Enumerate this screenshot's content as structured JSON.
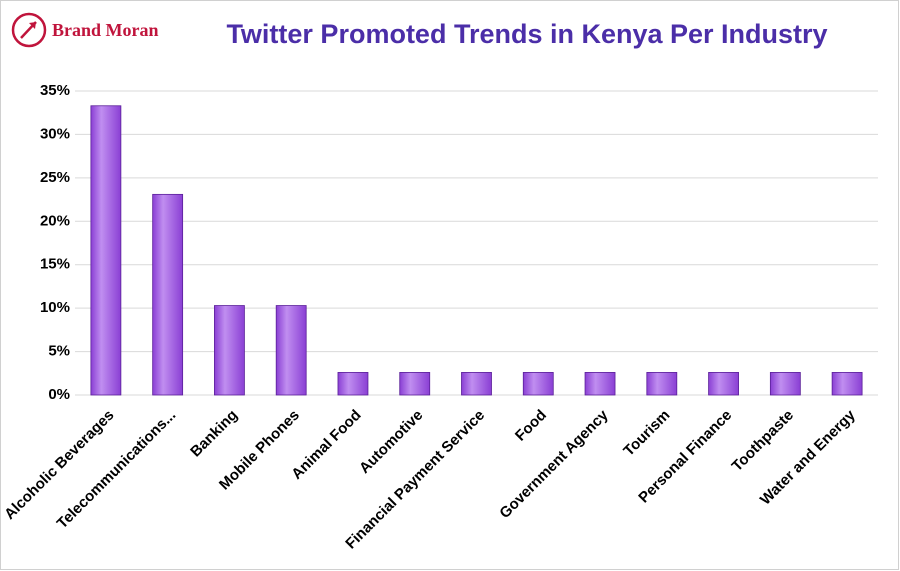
{
  "brand": "Brand Moran",
  "chart_data": {
    "type": "bar",
    "title": "Twitter Promoted Trends in Kenya Per Industry",
    "categories": [
      "Alcoholic Beverages",
      "Telecommunications...",
      "Banking",
      "Mobile Phones",
      "Animal Food",
      "Automotive",
      "Financial Payment Service",
      "Food",
      "Government Agency",
      "Tourism",
      "Personal Finance",
      "Toothpaste",
      "Water and Energy"
    ],
    "values": [
      33.3,
      23.1,
      10.3,
      10.3,
      2.6,
      2.6,
      2.6,
      2.6,
      2.6,
      2.6,
      2.6,
      2.6,
      2.6
    ],
    "color": "#8a3fd4",
    "ylim": [
      0,
      35
    ],
    "yticks": [
      {
        "value": 0,
        "label": "0%"
      },
      {
        "value": 5,
        "label": "5%"
      },
      {
        "value": 10,
        "label": "10%"
      },
      {
        "value": 15,
        "label": "15%"
      },
      {
        "value": 20,
        "label": "20%"
      },
      {
        "value": 25,
        "label": "25%"
      },
      {
        "value": 30,
        "label": "30%"
      },
      {
        "value": 35,
        "label": "35%"
      }
    ],
    "grid": true
  }
}
